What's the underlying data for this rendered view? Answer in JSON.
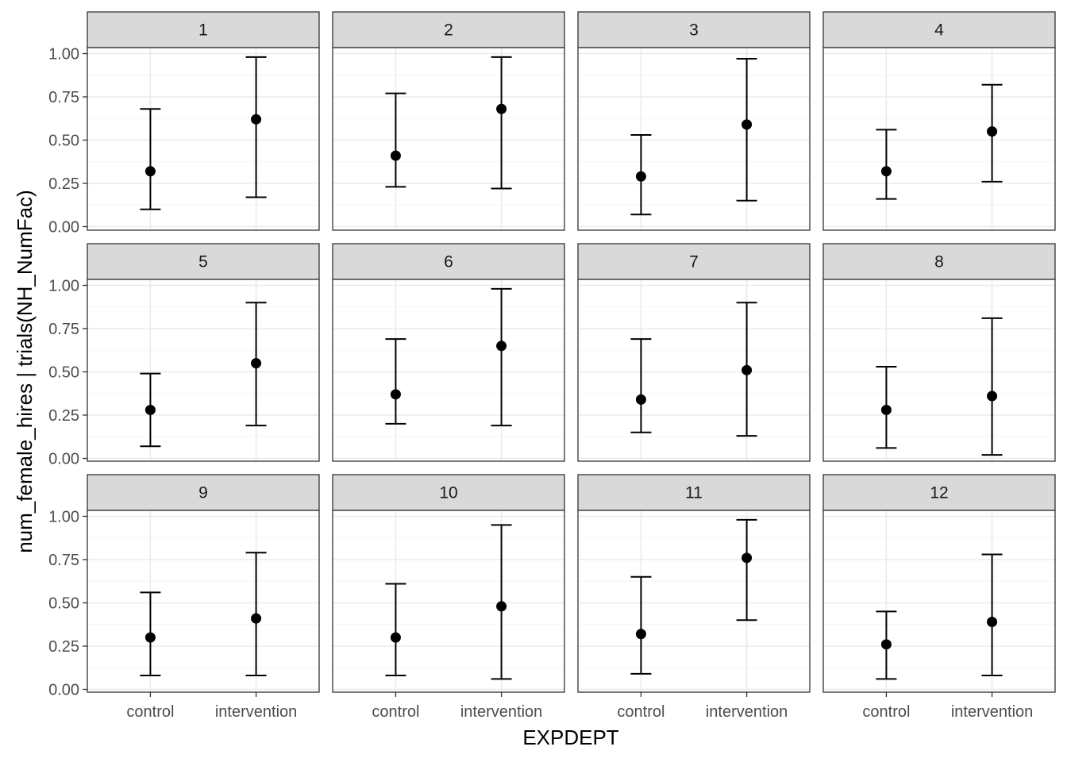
{
  "chart_data": {
    "type": "scatter",
    "subtype": "point-range facets (estimate with interval)",
    "xlabel": "EXPDEPT",
    "ylabel": "num_female_hires | trials(NH_NumFac)",
    "categories": [
      "control",
      "intervention"
    ],
    "ylim": [
      0,
      1.05
    ],
    "y_ticks": [
      "0.00",
      "0.25",
      "0.50",
      "0.75",
      "1.00"
    ],
    "grid": true,
    "facet_layout": "3 rows x 4 columns",
    "facets": [
      {
        "label": "1",
        "points": [
          {
            "x": "control",
            "y": 0.32,
            "lower": 0.1,
            "upper": 0.68
          },
          {
            "x": "intervention",
            "y": 0.62,
            "lower": 0.17,
            "upper": 0.98
          }
        ]
      },
      {
        "label": "2",
        "points": [
          {
            "x": "control",
            "y": 0.41,
            "lower": 0.23,
            "upper": 0.77
          },
          {
            "x": "intervention",
            "y": 0.68,
            "lower": 0.22,
            "upper": 0.98
          }
        ]
      },
      {
        "label": "3",
        "points": [
          {
            "x": "control",
            "y": 0.29,
            "lower": 0.07,
            "upper": 0.53
          },
          {
            "x": "intervention",
            "y": 0.59,
            "lower": 0.15,
            "upper": 0.97
          }
        ]
      },
      {
        "label": "4",
        "points": [
          {
            "x": "control",
            "y": 0.32,
            "lower": 0.16,
            "upper": 0.56
          },
          {
            "x": "intervention",
            "y": 0.55,
            "lower": 0.26,
            "upper": 0.82
          }
        ]
      },
      {
        "label": "5",
        "points": [
          {
            "x": "control",
            "y": 0.28,
            "lower": 0.07,
            "upper": 0.49
          },
          {
            "x": "intervention",
            "y": 0.55,
            "lower": 0.19,
            "upper": 0.9
          }
        ]
      },
      {
        "label": "6",
        "points": [
          {
            "x": "control",
            "y": 0.37,
            "lower": 0.2,
            "upper": 0.69
          },
          {
            "x": "intervention",
            "y": 0.65,
            "lower": 0.19,
            "upper": 0.98
          }
        ]
      },
      {
        "label": "7",
        "points": [
          {
            "x": "control",
            "y": 0.34,
            "lower": 0.15,
            "upper": 0.69
          },
          {
            "x": "intervention",
            "y": 0.51,
            "lower": 0.13,
            "upper": 0.9
          }
        ]
      },
      {
        "label": "8",
        "points": [
          {
            "x": "control",
            "y": 0.28,
            "lower": 0.06,
            "upper": 0.53
          },
          {
            "x": "intervention",
            "y": 0.36,
            "lower": 0.02,
            "upper": 0.81
          }
        ]
      },
      {
        "label": "9",
        "points": [
          {
            "x": "control",
            "y": 0.3,
            "lower": 0.08,
            "upper": 0.56
          },
          {
            "x": "intervention",
            "y": 0.41,
            "lower": 0.08,
            "upper": 0.79
          }
        ]
      },
      {
        "label": "10",
        "points": [
          {
            "x": "control",
            "y": 0.3,
            "lower": 0.08,
            "upper": 0.61
          },
          {
            "x": "intervention",
            "y": 0.48,
            "lower": 0.06,
            "upper": 0.95
          }
        ]
      },
      {
        "label": "11",
        "points": [
          {
            "x": "control",
            "y": 0.32,
            "lower": 0.09,
            "upper": 0.65
          },
          {
            "x": "intervention",
            "y": 0.76,
            "lower": 0.4,
            "upper": 0.98
          }
        ]
      },
      {
        "label": "12",
        "points": [
          {
            "x": "control",
            "y": 0.26,
            "lower": 0.06,
            "upper": 0.45
          },
          {
            "x": "intervention",
            "y": 0.39,
            "lower": 0.08,
            "upper": 0.78
          }
        ]
      }
    ]
  },
  "colors": {
    "panel_border": "#333333",
    "strip_fill": "#d9d9d9",
    "grid_major": "#ebebeb",
    "grid_minor": "#f5f5f5",
    "point_and_errorbar": "#000000"
  }
}
